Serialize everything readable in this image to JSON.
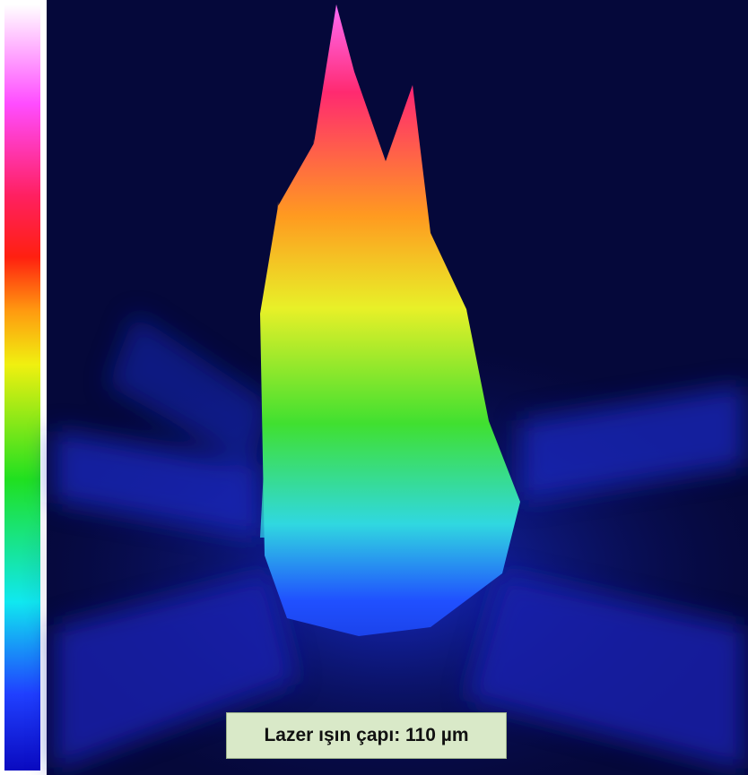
{
  "caption": "Lazer ışın çapı: 110 µm"
}
